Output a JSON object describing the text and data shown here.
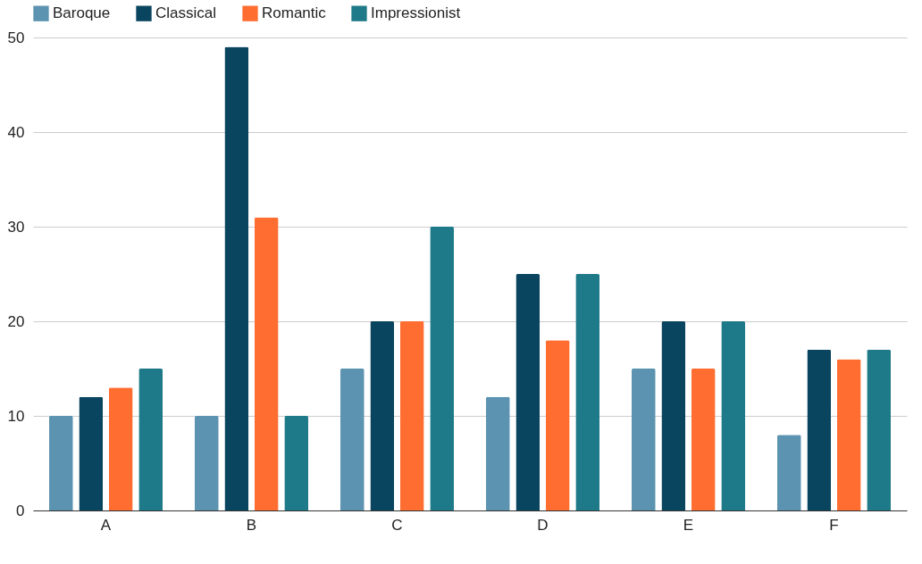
{
  "chart_data": {
    "type": "bar",
    "categories": [
      "A",
      "B",
      "C",
      "D",
      "E",
      "F"
    ],
    "series": [
      {
        "name": "Baroque",
        "color": "#5b93b1",
        "values": [
          10,
          10,
          15,
          12,
          15,
          8
        ]
      },
      {
        "name": "Classical",
        "color": "#0a4560",
        "values": [
          12,
          49,
          20,
          25,
          20,
          17
        ]
      },
      {
        "name": "Romantic",
        "color": "#ff6d31",
        "values": [
          13,
          31,
          20,
          18,
          15,
          16
        ]
      },
      {
        "name": "Impressionist",
        "color": "#1e7988",
        "values": [
          15,
          10,
          30,
          25,
          20,
          17
        ]
      }
    ],
    "ylim": [
      0,
      50
    ],
    "yticks": [
      0,
      10,
      20,
      30,
      40,
      50
    ],
    "grid": "y",
    "legend": "top"
  }
}
